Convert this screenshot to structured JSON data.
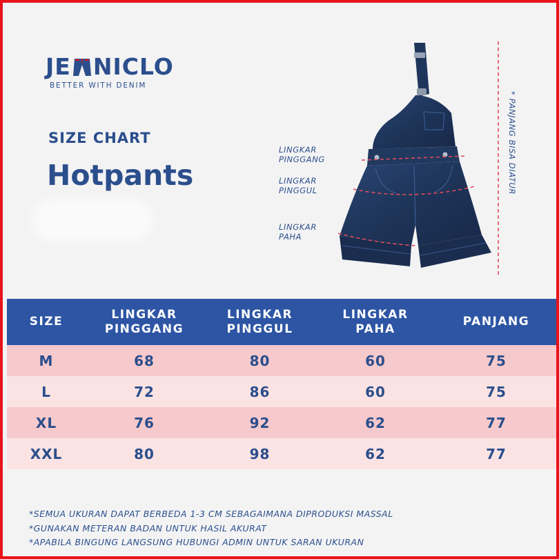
{
  "brand": {
    "name_left": "JE",
    "name_right": "NICLO",
    "logo_mark_icon": "denim-pants-a-icon",
    "tagline": "BETTER WITH DENIM"
  },
  "heading": {
    "label": "SIZE CHART",
    "product": "Hotpants"
  },
  "diagram": {
    "image_icon": "denim-overall-shorts-icon",
    "labels": {
      "waist": [
        "LINGKAR",
        "PINGGANG"
      ],
      "hip": [
        "LINGKAR",
        "PINGGUL"
      ],
      "thigh": [
        "LINGKAR",
        "PAHA"
      ]
    },
    "length_note": "* PANJANG BISA DIATUR"
  },
  "table": {
    "headers": [
      [
        "SIZE"
      ],
      [
        "LINGKAR",
        "PINGGANG"
      ],
      [
        "LINGKAR",
        "PINGGUL"
      ],
      [
        "LINGKAR",
        "PAHA"
      ],
      [
        "PANJANG"
      ]
    ],
    "rows": [
      [
        "M",
        "68",
        "80",
        "60",
        "75"
      ],
      [
        "L",
        "72",
        "86",
        "60",
        "75"
      ],
      [
        "XL",
        "76",
        "92",
        "62",
        "77"
      ],
      [
        "XXL",
        "80",
        "98",
        "62",
        "77"
      ]
    ]
  },
  "notes": [
    "*SEMUA UKURAN DAPAT BERBEDA 1-3 CM SEBAGAIMANA DIPRODUKSI MASSAL",
    "*GUNAKAN METERAN BADAN UNTUK HASIL AKURAT",
    "*APABILA BINGUNG LANGSUNG HUBUNGI ADMIN UNTUK SARAN UKURAN"
  ],
  "colors": {
    "brand_blue": "#2b4e8c",
    "header_blue": "#2d55a4",
    "row_pink_dark": "#f6c9cc",
    "row_pink_light": "#fbe3e4",
    "border_red": "#e8141b",
    "denim": "#1e3458",
    "measure_line": "#e04a5a"
  }
}
